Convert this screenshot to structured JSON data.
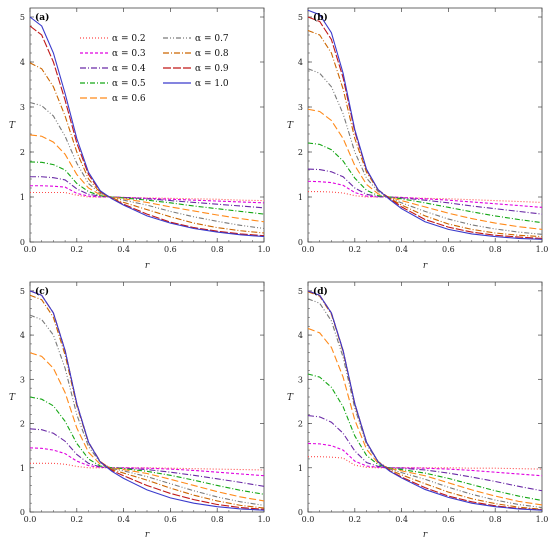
{
  "legend": {
    "symbol": "α",
    "entries": [
      {
        "label": "α = 0.2",
        "color": "#ff4a4a",
        "dash": "1,2"
      },
      {
        "label": "α = 0.3",
        "color": "#e000e0",
        "dash": "3,2"
      },
      {
        "label": "α = 0.4",
        "color": "#6a2aa6",
        "dash": "6,2,1,2"
      },
      {
        "label": "α = 0.5",
        "color": "#14a614",
        "dash": "5,2,1,2"
      },
      {
        "label": "α = 0.6",
        "color": "#ff8a1a",
        "dash": "7,3"
      },
      {
        "label": "α = 0.7",
        "color": "#7a7a7a",
        "dash": "5,2,1,2,1,2"
      },
      {
        "label": "α = 0.8",
        "color": "#cc6600",
        "dash": "6,2,1,2"
      },
      {
        "label": "α = 0.9",
        "color": "#c01818",
        "dash": "8,2"
      },
      {
        "label": "α = 1.0",
        "color": "#3a3acc",
        "dash": ""
      }
    ]
  },
  "chart_data": [
    {
      "type": "line",
      "panel": "(a)",
      "xlabel": "r",
      "ylabel": "T",
      "xlim": [
        0,
        1
      ],
      "ylim": [
        0,
        5.2
      ],
      "xticks": [
        "0.0",
        "0.2",
        "0.4",
        "0.6",
        "0.8",
        "1.0"
      ],
      "yticks": [
        "0",
        "1",
        "2",
        "3",
        "4",
        "5"
      ],
      "x": [
        0,
        0.05,
        0.1,
        0.15,
        0.2,
        0.25,
        0.3,
        0.35,
        0.4,
        0.5,
        0.6,
        0.7,
        0.8,
        0.9,
        1.0
      ],
      "series": [
        {
          "name": "α = 0.2",
          "values": [
            1.1,
            1.1,
            1.1,
            1.1,
            1.04,
            1.0,
            1.0,
            1.0,
            0.99,
            0.98,
            0.97,
            0.96,
            0.95,
            0.93,
            0.92
          ]
        },
        {
          "name": "α = 0.3",
          "values": [
            1.25,
            1.25,
            1.24,
            1.22,
            1.08,
            1.02,
            1.0,
            1.0,
            0.99,
            0.97,
            0.95,
            0.93,
            0.91,
            0.89,
            0.87
          ]
        },
        {
          "name": "α = 0.4",
          "values": [
            1.45,
            1.45,
            1.43,
            1.38,
            1.18,
            1.06,
            1.02,
            1.0,
            0.99,
            0.96,
            0.92,
            0.88,
            0.84,
            0.8,
            0.76
          ]
        },
        {
          "name": "α = 0.5",
          "values": [
            1.78,
            1.77,
            1.72,
            1.6,
            1.3,
            1.12,
            1.03,
            1.0,
            0.98,
            0.93,
            0.87,
            0.8,
            0.74,
            0.68,
            0.62
          ]
        },
        {
          "name": "α = 0.6",
          "values": [
            2.38,
            2.35,
            2.22,
            1.95,
            1.5,
            1.2,
            1.05,
            1.0,
            0.96,
            0.88,
            0.78,
            0.69,
            0.6,
            0.52,
            0.45
          ]
        },
        {
          "name": "α = 0.7",
          "values": [
            3.1,
            3.03,
            2.8,
            2.35,
            1.75,
            1.3,
            1.08,
            0.99,
            0.93,
            0.82,
            0.68,
            0.56,
            0.46,
            0.37,
            0.3
          ]
        },
        {
          "name": "α = 0.8",
          "values": [
            3.98,
            3.85,
            3.45,
            2.8,
            2.0,
            1.4,
            1.1,
            0.98,
            0.88,
            0.72,
            0.56,
            0.42,
            0.32,
            0.25,
            0.2
          ]
        },
        {
          "name": "α = 0.9",
          "values": [
            4.8,
            4.6,
            4.0,
            3.15,
            2.2,
            1.5,
            1.12,
            0.97,
            0.84,
            0.62,
            0.44,
            0.32,
            0.24,
            0.18,
            0.14
          ]
        },
        {
          "name": "α = 1.0",
          "values": [
            5.0,
            4.8,
            4.2,
            3.3,
            2.3,
            1.55,
            1.14,
            0.96,
            0.82,
            0.58,
            0.42,
            0.3,
            0.22,
            0.16,
            0.12
          ]
        }
      ]
    },
    {
      "type": "line",
      "panel": "(b)",
      "xlabel": "r",
      "ylabel": "T",
      "xlim": [
        0,
        1
      ],
      "ylim": [
        0,
        5.2
      ],
      "xticks": [
        "0.0",
        "0.2",
        "0.4",
        "0.6",
        "0.8",
        "1.0"
      ],
      "yticks": [
        "0",
        "1",
        "2",
        "3",
        "4",
        "5"
      ],
      "x": [
        0,
        0.05,
        0.1,
        0.15,
        0.2,
        0.25,
        0.3,
        0.35,
        0.4,
        0.5,
        0.6,
        0.7,
        0.8,
        0.9,
        1.0
      ],
      "series": [
        {
          "name": "α = 0.2",
          "values": [
            1.12,
            1.12,
            1.11,
            1.09,
            1.03,
            1.0,
            1.0,
            1.0,
            0.99,
            0.97,
            0.96,
            0.94,
            0.92,
            0.9,
            0.88
          ]
        },
        {
          "name": "α = 0.3",
          "values": [
            1.35,
            1.34,
            1.32,
            1.26,
            1.1,
            1.02,
            1.0,
            1.0,
            0.99,
            0.96,
            0.93,
            0.89,
            0.85,
            0.81,
            0.77
          ]
        },
        {
          "name": "α = 0.4",
          "values": [
            1.62,
            1.61,
            1.56,
            1.45,
            1.2,
            1.06,
            1.01,
            1.0,
            0.98,
            0.93,
            0.87,
            0.8,
            0.74,
            0.68,
            0.62
          ]
        },
        {
          "name": "α = 0.5",
          "values": [
            2.2,
            2.17,
            2.05,
            1.8,
            1.42,
            1.15,
            1.03,
            1.0,
            0.96,
            0.87,
            0.77,
            0.67,
            0.58,
            0.5,
            0.43
          ]
        },
        {
          "name": "α = 0.6",
          "values": [
            2.95,
            2.9,
            2.7,
            2.3,
            1.7,
            1.28,
            1.07,
            0.99,
            0.92,
            0.78,
            0.64,
            0.52,
            0.42,
            0.34,
            0.28
          ]
        },
        {
          "name": "α = 0.7",
          "values": [
            3.85,
            3.75,
            3.45,
            2.85,
            2.0,
            1.42,
            1.12,
            0.98,
            0.87,
            0.68,
            0.51,
            0.38,
            0.29,
            0.22,
            0.17
          ]
        },
        {
          "name": "α = 0.8",
          "values": [
            4.7,
            4.6,
            4.2,
            3.4,
            2.3,
            1.55,
            1.15,
            0.97,
            0.82,
            0.58,
            0.4,
            0.28,
            0.2,
            0.15,
            0.12
          ]
        },
        {
          "name": "α = 0.9",
          "values": [
            5.0,
            4.9,
            4.5,
            3.65,
            2.45,
            1.6,
            1.16,
            0.96,
            0.78,
            0.5,
            0.33,
            0.22,
            0.15,
            0.11,
            0.08
          ]
        },
        {
          "name": "α = 1.0",
          "values": [
            5.15,
            5.05,
            4.65,
            3.75,
            2.5,
            1.62,
            1.16,
            0.94,
            0.74,
            0.45,
            0.28,
            0.18,
            0.12,
            0.08,
            0.06
          ]
        }
      ]
    },
    {
      "type": "line",
      "panel": "(c)",
      "xlabel": "r",
      "ylabel": "T",
      "xlim": [
        0,
        1
      ],
      "ylim": [
        0,
        5.2
      ],
      "xticks": [
        "0.0",
        "0.2",
        "0.4",
        "0.6",
        "0.8",
        "1.0"
      ],
      "yticks": [
        "0",
        "1",
        "2",
        "3",
        "4",
        "5"
      ],
      "x": [
        0,
        0.05,
        0.1,
        0.15,
        0.2,
        0.25,
        0.3,
        0.35,
        0.4,
        0.5,
        0.6,
        0.7,
        0.8,
        0.9,
        1.0
      ],
      "series": [
        {
          "name": "α = 0.2",
          "values": [
            1.1,
            1.1,
            1.1,
            1.08,
            1.03,
            1.0,
            1.0,
            1.0,
            1.0,
            1.0,
            0.99,
            0.98,
            0.97,
            0.96,
            0.95
          ]
        },
        {
          "name": "α = 0.3",
          "values": [
            1.45,
            1.44,
            1.4,
            1.32,
            1.15,
            1.05,
            1.01,
            1.0,
            1.0,
            0.99,
            0.97,
            0.94,
            0.9,
            0.86,
            0.82
          ]
        },
        {
          "name": "α = 0.4",
          "values": [
            1.88,
            1.86,
            1.78,
            1.6,
            1.3,
            1.1,
            1.02,
            1.0,
            0.99,
            0.96,
            0.9,
            0.83,
            0.75,
            0.67,
            0.58
          ]
        },
        {
          "name": "α = 0.5",
          "values": [
            2.6,
            2.55,
            2.4,
            2.05,
            1.55,
            1.2,
            1.04,
            1.0,
            0.98,
            0.92,
            0.83,
            0.72,
            0.6,
            0.49,
            0.4
          ]
        },
        {
          "name": "α = 0.6",
          "values": [
            3.6,
            3.52,
            3.25,
            2.7,
            1.9,
            1.35,
            1.08,
            0.99,
            0.96,
            0.87,
            0.74,
            0.6,
            0.46,
            0.34,
            0.25
          ]
        },
        {
          "name": "α = 0.7",
          "values": [
            4.45,
            4.35,
            4.0,
            3.25,
            2.2,
            1.48,
            1.12,
            0.98,
            0.93,
            0.8,
            0.64,
            0.48,
            0.34,
            0.23,
            0.15
          ]
        },
        {
          "name": "α = 0.8",
          "values": [
            4.9,
            4.8,
            4.4,
            3.55,
            2.4,
            1.56,
            1.14,
            0.96,
            0.88,
            0.72,
            0.54,
            0.38,
            0.25,
            0.15,
            0.09
          ]
        },
        {
          "name": "α = 0.9",
          "values": [
            5.0,
            4.9,
            4.5,
            3.65,
            2.45,
            1.58,
            1.14,
            0.94,
            0.82,
            0.6,
            0.42,
            0.28,
            0.17,
            0.1,
            0.06
          ]
        },
        {
          "name": "α = 1.0",
          "values": [
            5.0,
            4.9,
            4.5,
            3.65,
            2.45,
            1.58,
            1.13,
            0.92,
            0.76,
            0.5,
            0.32,
            0.2,
            0.12,
            0.07,
            0.04
          ]
        }
      ]
    },
    {
      "type": "line",
      "panel": "(d)",
      "xlabel": "r",
      "ylabel": "T",
      "xlim": [
        0,
        1
      ],
      "ylim": [
        0,
        5.2
      ],
      "xticks": [
        "0.0",
        "0.2",
        "0.4",
        "0.6",
        "0.8",
        "1.0"
      ],
      "yticks": [
        "0",
        "1",
        "2",
        "3",
        "4",
        "5"
      ],
      "x": [
        0,
        0.05,
        0.1,
        0.15,
        0.2,
        0.25,
        0.3,
        0.35,
        0.4,
        0.5,
        0.6,
        0.7,
        0.8,
        0.9,
        1.0
      ],
      "series": [
        {
          "name": "α = 0.2",
          "values": [
            1.25,
            1.25,
            1.24,
            1.22,
            1.06,
            1.01,
            1.0,
            1.0,
            1.0,
            1.0,
            1.0,
            0.99,
            0.99,
            0.98,
            0.97
          ]
        },
        {
          "name": "α = 0.3",
          "values": [
            1.55,
            1.54,
            1.5,
            1.4,
            1.15,
            1.04,
            1.01,
            1.0,
            1.0,
            0.99,
            0.97,
            0.94,
            0.9,
            0.86,
            0.82
          ]
        },
        {
          "name": "α = 0.4",
          "values": [
            2.18,
            2.15,
            2.03,
            1.78,
            1.38,
            1.12,
            1.03,
            1.0,
            0.99,
            0.95,
            0.88,
            0.79,
            0.69,
            0.58,
            0.48
          ]
        },
        {
          "name": "α = 0.5",
          "values": [
            3.12,
            3.05,
            2.82,
            2.38,
            1.72,
            1.28,
            1.07,
            0.99,
            0.96,
            0.88,
            0.76,
            0.62,
            0.48,
            0.36,
            0.26
          ]
        },
        {
          "name": "α = 0.6",
          "values": [
            4.15,
            4.05,
            3.72,
            3.05,
            2.08,
            1.42,
            1.1,
            0.98,
            0.93,
            0.82,
            0.66,
            0.5,
            0.36,
            0.24,
            0.16
          ]
        },
        {
          "name": "α = 0.7",
          "values": [
            4.82,
            4.72,
            4.32,
            3.5,
            2.35,
            1.53,
            1.13,
            0.97,
            0.89,
            0.74,
            0.56,
            0.4,
            0.27,
            0.17,
            0.1
          ]
        },
        {
          "name": "α = 0.8",
          "values": [
            4.98,
            4.88,
            4.47,
            3.62,
            2.42,
            1.57,
            1.14,
            0.95,
            0.84,
            0.64,
            0.45,
            0.3,
            0.19,
            0.11,
            0.06
          ]
        },
        {
          "name": "α = 0.9",
          "values": [
            5.0,
            4.9,
            4.5,
            3.65,
            2.45,
            1.58,
            1.13,
            0.93,
            0.79,
            0.55,
            0.36,
            0.23,
            0.14,
            0.08,
            0.05
          ]
        },
        {
          "name": "α = 1.0",
          "values": [
            5.0,
            4.9,
            4.5,
            3.65,
            2.45,
            1.58,
            1.13,
            0.92,
            0.77,
            0.51,
            0.33,
            0.2,
            0.12,
            0.07,
            0.04
          ]
        }
      ]
    }
  ]
}
